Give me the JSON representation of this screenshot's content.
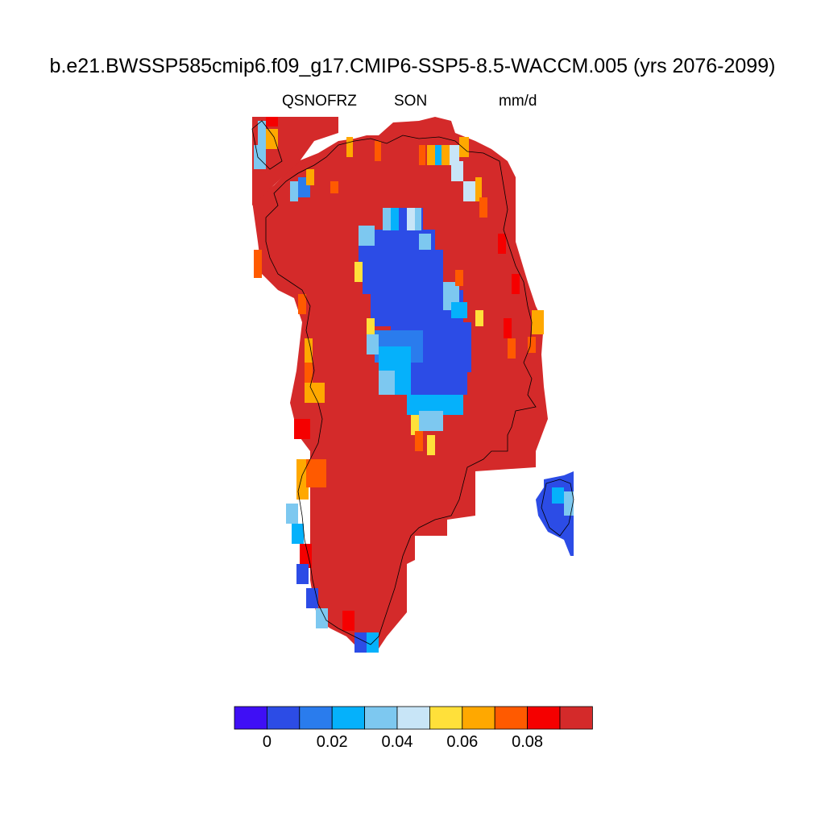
{
  "title": "b.e21.BWSSP585cmip6.f09_g17.CMIP6-SSP5-8.5-WACCM.005 (yrs 2076-2099)",
  "subtitle": {
    "variable": "QSNOFRZ",
    "season": "SON",
    "units": "mm/d"
  },
  "colorbar": {
    "colors": [
      "#3f0ff5",
      "#2c4ce6",
      "#2a7ced",
      "#05b1fb",
      "#7dc8f0",
      "#c8e5f7",
      "#ffe03a",
      "#ffa800",
      "#ff5a00",
      "#f50000",
      "#d42a2a"
    ],
    "labels": [
      "0",
      "0.02",
      "0.04",
      "0.06",
      "0.08"
    ]
  },
  "colors": {
    "dominant": "#d42a2a",
    "coastline": "#000000"
  }
}
